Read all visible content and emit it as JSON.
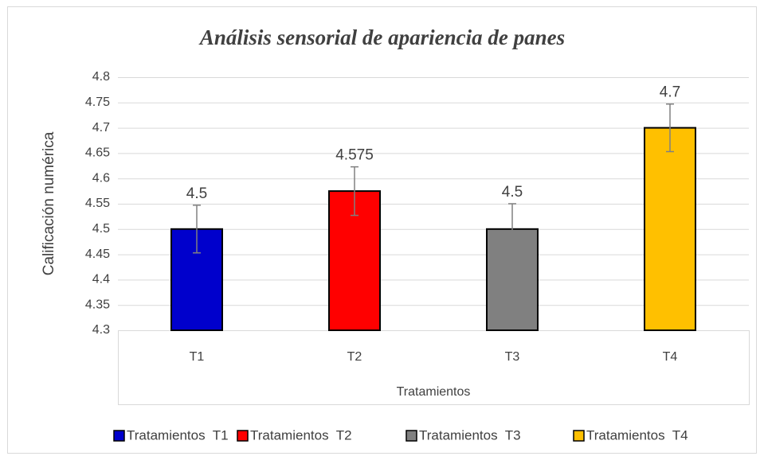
{
  "chart_data": {
    "type": "bar",
    "title": "Análisis sensorial de apariencia de panes",
    "y_label": "Calificación numérica",
    "x_label": "Tratamientos",
    "categories": [
      "T1",
      "T2",
      "T3",
      "T4"
    ],
    "values": [
      4.5,
      4.575,
      4.5,
      4.7
    ],
    "errors": [
      0.047,
      0.048,
      0.05,
      0.047
    ],
    "colors": [
      "#0000cc",
      "#ff0000",
      "#808080",
      "#ffc000"
    ],
    "legend": [
      "Tratamientos  T1",
      "Tratamientos  T2",
      "Tratamientos  T3",
      "Tratamientos  T4"
    ],
    "ylim": [
      4.3,
      4.8
    ],
    "yticks": [
      4.3,
      4.35,
      4.4,
      4.45,
      4.5,
      4.55,
      4.6,
      4.65,
      4.7,
      4.75,
      4.8
    ],
    "grid": true,
    "legend_position": "bottom"
  }
}
